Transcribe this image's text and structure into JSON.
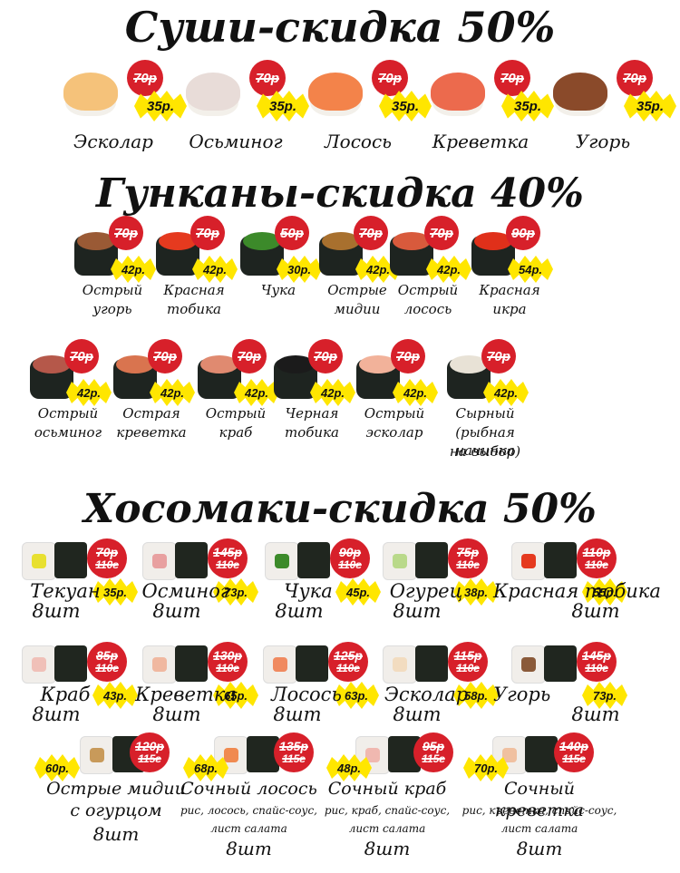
{
  "sections": {
    "sushi": {
      "title": "Суши-скидка 50%",
      "items": [
        {
          "name": "Эсколар",
          "old_price": "70р",
          "new_price": "35р.",
          "color": "#f5c27a"
        },
        {
          "name": "Осьминог",
          "old_price": "70р",
          "new_price": "35р.",
          "color": "#e8dcd8"
        },
        {
          "name": "Лосось",
          "old_price": "70р",
          "new_price": "35р.",
          "color": "#f3834a"
        },
        {
          "name": "Креветка",
          "old_price": "70р",
          "new_price": "35р.",
          "color": "#ec6a4d"
        },
        {
          "name": "Угорь",
          "old_price": "70р",
          "new_price": "35р.",
          "color": "#8a4a2a"
        }
      ]
    },
    "gunkan": {
      "title": "Гунканы-скидка 40%",
      "row1": [
        {
          "name_lines": [
            "Острый",
            "угорь"
          ],
          "old_price": "70р",
          "new_price": "42р.",
          "color": "#9a5a35"
        },
        {
          "name_lines": [
            "Красная",
            "тобика"
          ],
          "old_price": "70р",
          "new_price": "42р.",
          "color": "#e53a1f"
        },
        {
          "name_lines": [
            "Чука"
          ],
          "old_price": "50р",
          "new_price": "30р.",
          "color": "#3c8a2a"
        },
        {
          "name_lines": [
            "Острые",
            "мидии"
          ],
          "old_price": "70р",
          "new_price": "42р.",
          "color": "#a8702e"
        },
        {
          "name_lines": [
            "Острый",
            "лосось"
          ],
          "old_price": "70р",
          "new_price": "42р.",
          "color": "#d85a3c"
        },
        {
          "name_lines": [
            "Красная",
            "икра"
          ],
          "old_price": "90р",
          "new_price": "54р.",
          "color": "#e0301a"
        }
      ],
      "row2": [
        {
          "name_lines": [
            "Острый",
            "осьминог"
          ],
          "old_price": "70р",
          "new_price": "42р.",
          "color": "#b5584a"
        },
        {
          "name_lines": [
            "Острая",
            "креветка"
          ],
          "old_price": "70р",
          "new_price": "42р.",
          "color": "#d9744f"
        },
        {
          "name_lines": [
            "Острый",
            "краб"
          ],
          "old_price": "70р",
          "new_price": "42р.",
          "color": "#e08a70"
        },
        {
          "name_lines": [
            "Черная",
            "тобика"
          ],
          "old_price": "70р",
          "new_price": "42р.",
          "color": "#1b1b1b"
        },
        {
          "name_lines": [
            "Острый",
            "эсколар"
          ],
          "old_price": "70р",
          "new_price": "42р.",
          "color": "#f2b29a"
        },
        {
          "name_lines": [
            "Сырный",
            "(рыбная начинка",
            "на выбор)"
          ],
          "old_price": "70р",
          "new_price": "42р.",
          "color": "#e8e2d6"
        }
      ]
    },
    "hosomaki": {
      "title": "Хосомаки-скидка 50%",
      "row1": [
        {
          "name": "Текуан",
          "count": "8шт",
          "old_price": "70р",
          "weight": "110г",
          "new_price": "35р.",
          "color": "#e8e030"
        },
        {
          "name": "Осминог",
          "count": "8шт",
          "old_price": "145р",
          "weight": "110г",
          "new_price": "73р.",
          "color": "#e8a0a0"
        },
        {
          "name": "Чука",
          "count": "8шт",
          "old_price": "90р",
          "weight": "110г",
          "new_price": "45р.",
          "color": "#3c8a2a"
        },
        {
          "name": "Огурец",
          "count": "8шт",
          "old_price": "75р",
          "weight": "110г",
          "new_price": "38р.",
          "color": "#b9d98a"
        },
        {
          "name": "Красная тобика",
          "count": "8шт",
          "old_price": "110р",
          "weight": "110г",
          "new_price": "55р.",
          "color": "#e53a1f"
        }
      ],
      "row2": [
        {
          "name": "Краб",
          "count": "8шт",
          "old_price": "85р",
          "weight": "110г",
          "new_price": "43р.",
          "color": "#f0c0b8"
        },
        {
          "name": "Креветка",
          "count": "8шт",
          "old_price": "130р",
          "weight": "110г",
          "new_price": "65р.",
          "color": "#f0b8a0"
        },
        {
          "name": "Лосось",
          "count": "8шт",
          "old_price": "125р",
          "weight": "110г",
          "new_price": "63р.",
          "color": "#f08a60"
        },
        {
          "name": "Эсколар",
          "count": "8шт",
          "old_price": "115р",
          "weight": "110г",
          "new_price": "58р.",
          "color": "#f2dcc0"
        },
        {
          "name": "Угорь",
          "count": "8шт",
          "old_price": "145р",
          "weight": "110г",
          "new_price": "73р.",
          "color": "#8a5a3a"
        }
      ],
      "row3": [
        {
          "name_lines": [
            "Острые мидии",
            "с огурцом"
          ],
          "desc_lines": [],
          "count": "8шт",
          "old_price": "120р",
          "weight": "115г",
          "new_price": "60р.",
          "color": "#c89a5a"
        },
        {
          "name_lines": [
            "Сочный лосось"
          ],
          "desc_lines": [
            "рис, лосось, спайс-соус,",
            "лист салата"
          ],
          "count": "8шт",
          "old_price": "135р",
          "weight": "115г",
          "new_price": "68р.",
          "color": "#f08a50"
        },
        {
          "name_lines": [
            "Сочный краб"
          ],
          "desc_lines": [
            "рис, краб, спайс-соус,",
            "лист салата"
          ],
          "count": "8шт",
          "old_price": "95р",
          "weight": "115г",
          "new_price": "48р.",
          "color": "#f0b8b0"
        },
        {
          "name_lines": [
            "Сочный креветка"
          ],
          "desc_lines": [
            "рис, креветка, спайс-соус,",
            "лист салата"
          ],
          "count": "8шт",
          "old_price": "140р",
          "weight": "115г",
          "new_price": "70р.",
          "color": "#f0c0a0"
        }
      ]
    }
  },
  "colors": {
    "badge_red": "#d7202a",
    "badge_yellow": "#ffe600"
  }
}
